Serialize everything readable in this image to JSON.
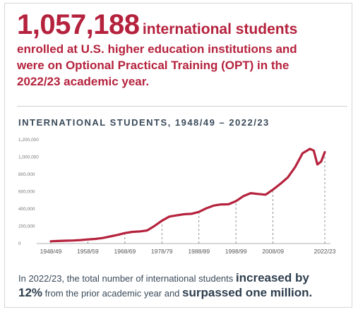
{
  "header": {
    "big_number": "1,057,188",
    "big_number_suffix": "international students",
    "line2": "enrolled at U.S. higher education institutions and",
    "line3": "were on Optional Practical Training (OPT) in the",
    "line4": "2022/23 academic year."
  },
  "colors": {
    "accent": "#b5223d",
    "text": "#3a4a5a",
    "grid": "#bbbbbb"
  },
  "chart_data": {
    "type": "line",
    "title": "INTERNATIONAL STUDENTS, 1948/49 – 2022/23",
    "xlabel": "",
    "ylabel": "",
    "ylim": [
      0,
      1200000
    ],
    "xlim": [
      1948,
      2022
    ],
    "y_ticks": [
      "0",
      "200,000",
      "400,000",
      "600,000",
      "800,000",
      "1,000,000",
      "1,200,000"
    ],
    "y_tick_values": [
      0,
      200000,
      400000,
      600000,
      800000,
      1000000,
      1200000
    ],
    "x_ticks": [
      "1948/49",
      "1958/59",
      "1968/69",
      "1978/79",
      "1988/89",
      "1998/99",
      "2008/09",
      "2022/23"
    ],
    "x_tick_values": [
      1948,
      1958,
      1968,
      1978,
      1988,
      1998,
      2008,
      2022
    ],
    "gridlines": "vertical-dashed",
    "series": [
      {
        "name": "",
        "x": [
          1948,
          1950,
          1952,
          1954,
          1956,
          1958,
          1960,
          1962,
          1964,
          1966,
          1968,
          1970,
          1972,
          1974,
          1976,
          1978,
          1980,
          1982,
          1984,
          1986,
          1988,
          1990,
          1992,
          1994,
          1996,
          1998,
          2000,
          2002,
          2004,
          2006,
          2008,
          2010,
          2012,
          2014,
          2016,
          2018,
          2019,
          2020,
          2021,
          2022
        ],
        "values": [
          26000,
          29000,
          33000,
          35000,
          40000,
          47000,
          53000,
          64000,
          82000,
          100000,
          121000,
          135000,
          140000,
          151000,
          203000,
          264000,
          312000,
          326000,
          339000,
          344000,
          366000,
          407000,
          439000,
          452000,
          454000,
          491000,
          548000,
          583000,
          573000,
          565000,
          624000,
          691000,
          765000,
          886000,
          1044000,
          1095000,
          1075000,
          914000,
          948000,
          1057000
        ]
      }
    ]
  },
  "footer": {
    "text1": "In 2022/23, the total number of international students",
    "em1": "increased by",
    "em2": "12%",
    "text2": "from the prior academic year and",
    "em3": "surpassed one million."
  }
}
